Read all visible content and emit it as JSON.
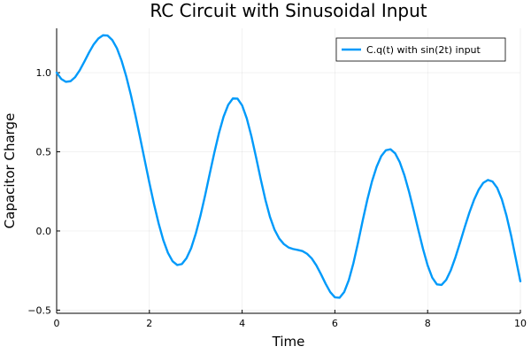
{
  "chart_data": {
    "type": "line",
    "title": "RC Circuit with Sinusoidal Input",
    "xlabel": "Time",
    "ylabel": "Capacitor Charge",
    "xlim": [
      0,
      10
    ],
    "ylim": [
      -0.52,
      1.28
    ],
    "xticks": [
      0,
      2,
      4,
      6,
      8,
      10
    ],
    "xtick_labels": [
      "0",
      "2",
      "4",
      "6",
      "8",
      "10"
    ],
    "yticks": [
      -0.5,
      0.0,
      0.5,
      1.0
    ],
    "ytick_labels": [
      "−0.5",
      "0.0",
      "0.5",
      "1.0"
    ],
    "grid": true,
    "legend_position": "top-right",
    "series": [
      {
        "name": "C.q(t) with sin(2t) input",
        "color": "#009AFA",
        "x": [
          0,
          0.1,
          0.2,
          0.3,
          0.4,
          0.5,
          0.6,
          0.7,
          0.8,
          0.9,
          1.0,
          1.1,
          1.2,
          1.3,
          1.4,
          1.5,
          1.6,
          1.7,
          1.8,
          1.9,
          2.0,
          2.1,
          2.2,
          2.3,
          2.4,
          2.5,
          2.6,
          2.7,
          2.8,
          2.9,
          3.0,
          3.1,
          3.2,
          3.3,
          3.4,
          3.5,
          3.6,
          3.7,
          3.8,
          3.9,
          4.0,
          4.1,
          4.2,
          4.3,
          4.4,
          4.5,
          4.6,
          4.7,
          4.8,
          4.9,
          5.0,
          5.1,
          5.2,
          5.3,
          5.4,
          5.5,
          5.6,
          5.7,
          5.8,
          5.9,
          6.0,
          6.1,
          6.2,
          6.3,
          6.4,
          6.5,
          6.6,
          6.7,
          6.8,
          6.9,
          7.0,
          7.1,
          7.2,
          7.3,
          7.4,
          7.5,
          7.6,
          7.7,
          7.8,
          7.9,
          8.0,
          8.1,
          8.2,
          8.3,
          8.4,
          8.5,
          8.6,
          8.7,
          8.8,
          8.9,
          9.0,
          9.1,
          9.2,
          9.3,
          9.4,
          9.5,
          9.6,
          9.7,
          9.8,
          9.9,
          10.0
        ],
        "y": [
          1.0,
          0.96,
          0.942,
          0.946,
          0.972,
          1.016,
          1.071,
          1.128,
          1.179,
          1.216,
          1.236,
          1.234,
          1.206,
          1.154,
          1.076,
          0.977,
          0.86,
          0.729,
          0.589,
          0.446,
          0.304,
          0.169,
          0.047,
          -0.058,
          -0.138,
          -0.191,
          -0.215,
          -0.209,
          -0.172,
          -0.109,
          -0.017,
          0.095,
          0.223,
          0.36,
          0.494,
          0.618,
          0.722,
          0.797,
          0.837,
          0.836,
          0.793,
          0.711,
          0.598,
          0.466,
          0.328,
          0.199,
          0.089,
          0.007,
          -0.048,
          -0.083,
          -0.104,
          -0.114,
          -0.12,
          -0.127,
          -0.144,
          -0.173,
          -0.217,
          -0.273,
          -0.333,
          -0.386,
          -0.419,
          -0.422,
          -0.386,
          -0.311,
          -0.203,
          -0.073,
          0.066,
          0.198,
          0.313,
          0.405,
          0.473,
          0.51,
          0.516,
          0.49,
          0.434,
          0.351,
          0.247,
          0.129,
          0.006,
          -0.113,
          -0.217,
          -0.295,
          -0.337,
          -0.341,
          -0.309,
          -0.248,
          -0.166,
          -0.073,
          0.024,
          0.116,
          0.196,
          0.26,
          0.304,
          0.322,
          0.312,
          0.272,
          0.2,
          0.097,
          -0.029,
          -0.173,
          -0.318
        ]
      }
    ]
  }
}
